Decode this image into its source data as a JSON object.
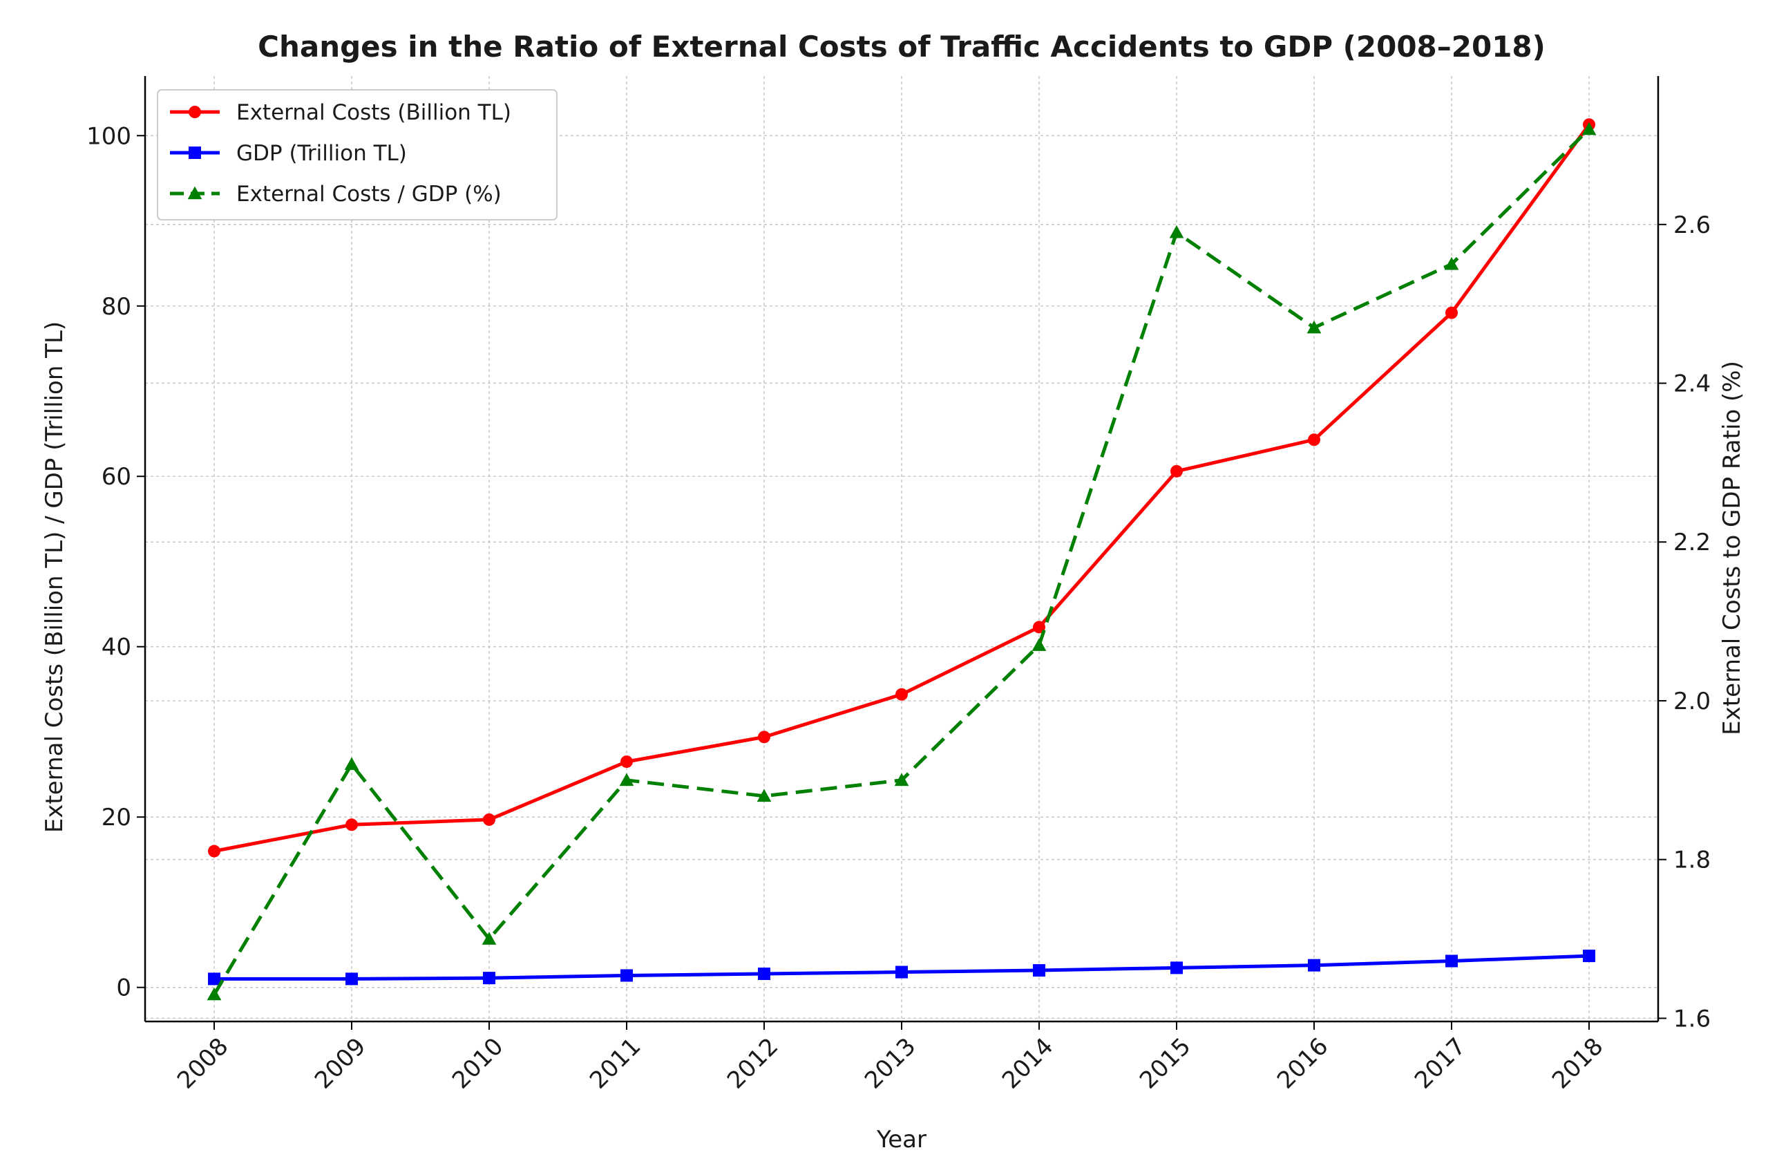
{
  "chart_data": {
    "type": "line",
    "title": "Changes in the Ratio of External Costs of Traffic Accidents to GDP (2008–2018)",
    "xlabel": "Year",
    "ylabel_left": "External Costs (Billion TL) / GDP (Trillion TL)",
    "ylabel_right": "External Costs to GDP Ratio (%)",
    "categories": [
      "2008",
      "2009",
      "2010",
      "2011",
      "2012",
      "2013",
      "2014",
      "2015",
      "2016",
      "2017",
      "2018"
    ],
    "ylim_left": [
      -4,
      107
    ],
    "ylim_right": [
      1.596,
      2.787
    ],
    "yticks_left": [
      "0",
      "20",
      "40",
      "60",
      "80",
      "100"
    ],
    "yticks_right": [
      "1.6",
      "1.8",
      "2.0",
      "2.2",
      "2.4",
      "2.6"
    ],
    "grid": true,
    "legend_position": "upper-left",
    "series": [
      {
        "name": "External Costs (Billion TL)",
        "axis": "left",
        "color": "#ff0000",
        "marker": "circle",
        "dash": "solid",
        "values": [
          16.0,
          19.1,
          19.7,
          26.5,
          29.4,
          34.4,
          42.3,
          60.6,
          64.3,
          79.2,
          101.3
        ]
      },
      {
        "name": "GDP (Trillion TL)",
        "axis": "left",
        "color": "#0000ff",
        "marker": "square",
        "dash": "solid",
        "values": [
          1.0,
          1.0,
          1.1,
          1.4,
          1.6,
          1.8,
          2.0,
          2.3,
          2.6,
          3.1,
          3.7
        ]
      },
      {
        "name": "External Costs / GDP (%)",
        "axis": "right",
        "color": "#008000",
        "marker": "triangle",
        "dash": "dashed",
        "values": [
          1.63,
          1.92,
          1.7,
          1.9,
          1.88,
          1.9,
          2.07,
          2.59,
          2.47,
          2.55,
          2.72
        ]
      }
    ]
  }
}
